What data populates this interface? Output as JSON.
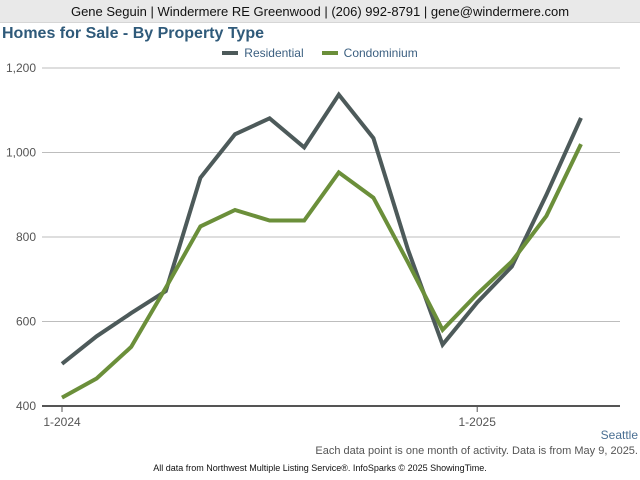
{
  "agent_bar": {
    "text": "Gene Seguin | Windermere RE Greenwood | (206) 992-8791 | gene@windermere.com"
  },
  "region": "Seattle",
  "footnote": "Each data point is one month of activity. Data is from May 9, 2025.",
  "source": "All data from Northwest Multiple Listing Service®. InfoSparks © 2025 ShowingTime.",
  "colors": {
    "residential": "#4d5a5a",
    "condominium": "#6b8f3a",
    "gridline": "#bdbdbd",
    "axis": "#555555",
    "title": "#2f5a7a"
  },
  "chart_data": {
    "type": "line",
    "title": "Homes for Sale - By Property Type",
    "xlabel": "",
    "ylabel": "",
    "x": [
      "2024-01",
      "2024-02",
      "2024-03",
      "2024-04",
      "2024-05",
      "2024-06",
      "2024-07",
      "2024-08",
      "2024-09",
      "2024-10",
      "2024-11",
      "2024-12",
      "2025-01",
      "2025-02",
      "2025-03",
      "2025-04"
    ],
    "x_tick_labels": [
      {
        "x": "2024-01",
        "label": "1-2024"
      },
      {
        "x": "2025-01",
        "label": "1-2025"
      }
    ],
    "y_ticks": [
      400,
      600,
      800,
      1000,
      1200
    ],
    "y_tick_labels": [
      "400",
      "600",
      "800",
      "1,000",
      "1,200"
    ],
    "ylim": [
      400,
      1200
    ],
    "grid": true,
    "legend_position": "top-center",
    "series": [
      {
        "name": "Residential",
        "color_key": "residential",
        "values": [
          500,
          565,
          620,
          672,
          940,
          1043,
          1081,
          1012,
          1137,
          1034,
          770,
          545,
          645,
          730,
          900,
          1082
        ]
      },
      {
        "name": "Condominium",
        "color_key": "condominium",
        "values": [
          420,
          465,
          540,
          680,
          825,
          864,
          839,
          839,
          953,
          893,
          740,
          580,
          665,
          742,
          850,
          1020
        ]
      }
    ]
  }
}
